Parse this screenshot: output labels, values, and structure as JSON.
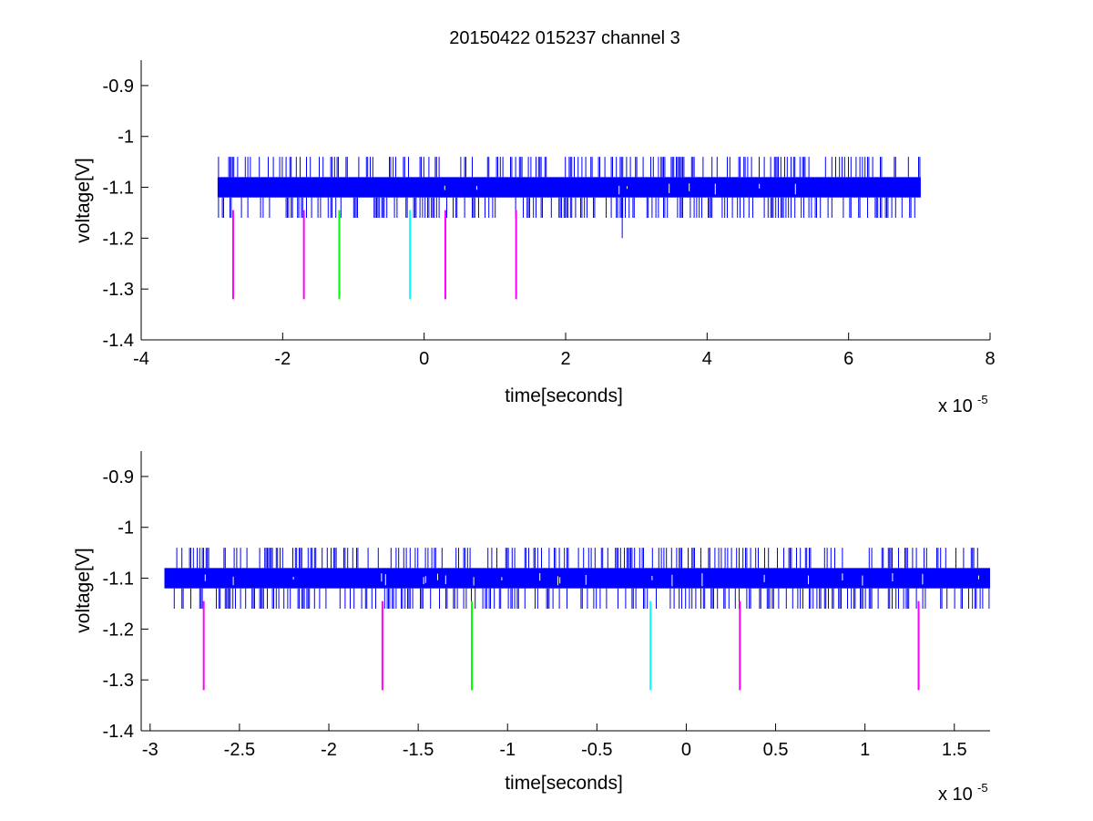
{
  "figure": {
    "title": "20150422 015237 channel 3"
  },
  "chart_data": [
    {
      "type": "line",
      "title": "20150422 015237 channel 3",
      "xlabel": "time[seconds]",
      "ylabel": "voltage[V]",
      "x_multiplier": {
        "base": "x 10",
        "exponent": "-5"
      },
      "xlim": [
        -4,
        8
      ],
      "ylim": [
        -1.4,
        -0.85
      ],
      "xticks": [
        -4,
        -2,
        0,
        2,
        4,
        6,
        8
      ],
      "xtick_labels": [
        "-4",
        "-2",
        "0",
        "2",
        "4",
        "6",
        "8"
      ],
      "yticks": [
        -1.4,
        -1.3,
        -1.2,
        -1.1,
        -1,
        -0.9
      ],
      "ytick_labels": [
        "-1.4",
        "-1.3",
        "-1.2",
        "-1.1",
        "-1",
        "-0.9"
      ],
      "grid": false,
      "colors": {
        "signal": "#0000ff",
        "magenta": "#ff00ff",
        "green": "#00ff00",
        "cyan": "#00ffff",
        "axes": "#000000"
      },
      "signal": {
        "x_range": [
          -2.92,
          7.02
        ],
        "band": [
          -1.12,
          -1.08
        ],
        "spikes": [
          -1.16,
          -1.04
        ],
        "outlier": {
          "x": 2.8,
          "y_from": -1.12,
          "y_to": -1.2
        }
      },
      "markers": [
        {
          "x": -2.7,
          "y_from": -1.145,
          "y_to": -1.32,
          "color": "#ff00ff"
        },
        {
          "x": -1.7,
          "y_from": -1.145,
          "y_to": -1.32,
          "color": "#ff00ff"
        },
        {
          "x": -1.2,
          "y_from": -1.145,
          "y_to": -1.32,
          "color": "#00ff00"
        },
        {
          "x": -0.2,
          "y_from": -1.145,
          "y_to": -1.32,
          "color": "#00ffff"
        },
        {
          "x": 0.3,
          "y_from": -1.145,
          "y_to": -1.32,
          "color": "#ff00ff"
        },
        {
          "x": 1.3,
          "y_from": -1.145,
          "y_to": -1.32,
          "color": "#ff00ff"
        }
      ]
    },
    {
      "type": "line",
      "xlabel": "time[seconds]",
      "ylabel": "voltage[V]",
      "x_multiplier": {
        "base": "x 10",
        "exponent": "-5"
      },
      "xlim": [
        -3.05,
        1.7
      ],
      "ylim": [
        -1.4,
        -0.85
      ],
      "xticks": [
        -3,
        -2.5,
        -2,
        -1.5,
        -1,
        -0.5,
        0,
        0.5,
        1,
        1.5
      ],
      "xtick_labels": [
        "-3",
        "-2.5",
        "-2",
        "-1.5",
        "-1",
        "-0.5",
        "0",
        "0.5",
        "1",
        "1.5"
      ],
      "yticks": [
        -1.4,
        -1.3,
        -1.2,
        -1.1,
        -1,
        -0.9
      ],
      "ytick_labels": [
        "-1.4",
        "-1.3",
        "-1.2",
        "-1.1",
        "-1",
        "-0.9"
      ],
      "grid": false,
      "colors": {
        "signal": "#0000ff",
        "magenta": "#ff00ff",
        "green": "#00ff00",
        "cyan": "#00ffff",
        "axes": "#000000"
      },
      "signal": {
        "x_range": [
          -2.92,
          1.7
        ],
        "band": [
          -1.12,
          -1.08
        ],
        "spikes": [
          -1.16,
          -1.04
        ]
      },
      "markers": [
        {
          "x": -2.7,
          "y_from": -1.145,
          "y_to": -1.32,
          "color": "#ff00ff"
        },
        {
          "x": -1.7,
          "y_from": -1.145,
          "y_to": -1.32,
          "color": "#ff00ff"
        },
        {
          "x": -1.2,
          "y_from": -1.145,
          "y_to": -1.32,
          "color": "#00ff00"
        },
        {
          "x": -0.2,
          "y_from": -1.145,
          "y_to": -1.32,
          "color": "#00ffff"
        },
        {
          "x": 0.3,
          "y_from": -1.145,
          "y_to": -1.32,
          "color": "#ff00ff"
        },
        {
          "x": 1.3,
          "y_from": -1.145,
          "y_to": -1.32,
          "color": "#ff00ff"
        }
      ]
    }
  ]
}
